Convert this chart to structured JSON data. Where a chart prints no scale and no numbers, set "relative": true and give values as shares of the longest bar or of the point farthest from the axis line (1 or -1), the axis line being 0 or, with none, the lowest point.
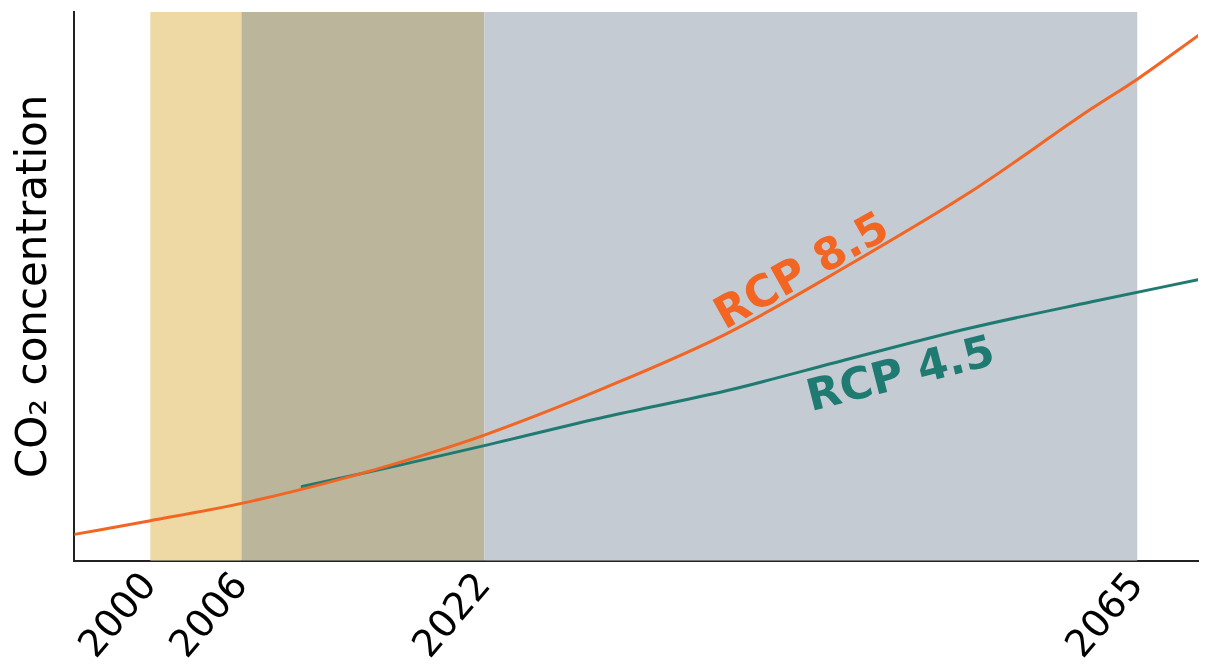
{
  "chart_data": {
    "type": "line",
    "relative": true,
    "ylabel": "CO₂ concentration",
    "xlim": [
      1995,
      2069
    ],
    "xticks": [
      2000,
      2006,
      2022,
      2065
    ],
    "grid": false,
    "legend": false,
    "marker": "none",
    "line_style": "solid",
    "bands": [
      {
        "axis": "x",
        "from": 2000,
        "to": 2006,
        "color": "#eed9a4"
      },
      {
        "axis": "x",
        "from": 2006,
        "to": 2022,
        "color": "#bbb59b"
      },
      {
        "axis": "x",
        "from": 2022,
        "to": 2065,
        "color": "#c4cbd2"
      }
    ],
    "series": [
      {
        "name": "RCP 8.5",
        "color": "#f26522",
        "x": [
          1995,
          2000,
          2006,
          2012,
          2018,
          2022,
          2030,
          2038,
          2046,
          2054,
          2062,
          2065,
          2069
        ],
        "values": [
          0.05,
          0.076,
          0.109,
          0.151,
          0.201,
          0.239,
          0.33,
          0.433,
          0.563,
          0.702,
          0.861,
          0.917,
          1.0
        ]
      },
      {
        "name": "RCP 4.5",
        "color": "#1f7a72",
        "x": [
          2010,
          2016,
          2022,
          2030,
          2038,
          2046,
          2054,
          2062,
          2069
        ],
        "values": [
          0.141,
          0.179,
          0.219,
          0.274,
          0.324,
          0.384,
          0.443,
          0.493,
          0.535
        ]
      }
    ]
  }
}
